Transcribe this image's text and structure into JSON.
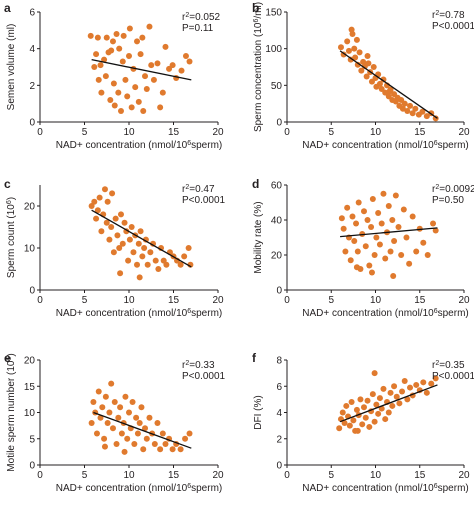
{
  "chart_data": [
    {
      "panel": "a",
      "type": "scatter",
      "xlabel": "NAD+ concentration (nmol/10^6sperm)",
      "ylabel": "Semen volume (ml)",
      "xlim": [
        0,
        20
      ],
      "ylim": [
        0,
        6
      ],
      "xticks": [
        "0",
        "5",
        "10",
        "15",
        "20"
      ],
      "yticks": [
        "0",
        "2",
        "4",
        "6"
      ],
      "stats": [
        "r²=0.052",
        "P=0.11"
      ],
      "fit": {
        "x": [
          5.8,
          17.0
        ],
        "y": [
          3.4,
          2.3
        ]
      },
      "points": [
        [
          5.7,
          4.7
        ],
        [
          6.1,
          3.0
        ],
        [
          6.3,
          3.7
        ],
        [
          6.5,
          4.6
        ],
        [
          6.6,
          2.3
        ],
        [
          6.8,
          3.1
        ],
        [
          6.9,
          1.6
        ],
        [
          7.2,
          3.4
        ],
        [
          7.4,
          2.5
        ],
        [
          7.5,
          4.6
        ],
        [
          7.7,
          3.8
        ],
        [
          7.9,
          1.2
        ],
        [
          8.0,
          3.9
        ],
        [
          8.2,
          4.4
        ],
        [
          8.3,
          2.1
        ],
        [
          8.4,
          0.9
        ],
        [
          8.6,
          4.8
        ],
        [
          8.8,
          1.6
        ],
        [
          8.9,
          4.0
        ],
        [
          9.1,
          0.6
        ],
        [
          9.3,
          3.3
        ],
        [
          9.4,
          4.7
        ],
        [
          9.6,
          2.3
        ],
        [
          9.8,
          1.4
        ],
        [
          10.0,
          3.6
        ],
        [
          10.1,
          5.1
        ],
        [
          10.3,
          0.8
        ],
        [
          10.5,
          2.9
        ],
        [
          10.7,
          1.9
        ],
        [
          10.9,
          4.4
        ],
        [
          11.1,
          1.1
        ],
        [
          11.3,
          3.7
        ],
        [
          11.5,
          4.6
        ],
        [
          11.6,
          0.6
        ],
        [
          11.8,
          2.5
        ],
        [
          12.0,
          1.8
        ],
        [
          12.3,
          5.2
        ],
        [
          12.5,
          3.1
        ],
        [
          12.8,
          2.3
        ],
        [
          13.2,
          3.2
        ],
        [
          13.5,
          0.8
        ],
        [
          13.8,
          1.6
        ],
        [
          14.1,
          4.1
        ],
        [
          14.5,
          2.9
        ],
        [
          14.9,
          3.1
        ],
        [
          15.3,
          2.4
        ],
        [
          15.9,
          2.8
        ],
        [
          16.4,
          3.6
        ],
        [
          16.8,
          3.3
        ]
      ]
    },
    {
      "panel": "b",
      "type": "scatter",
      "xlabel": "NAD+ concentration (nmol/10^6sperm)",
      "ylabel": "Sperm concentration (10^6/ml)",
      "xlim": [
        0,
        20
      ],
      "ylim": [
        0,
        150
      ],
      "xticks": [
        "0",
        "5",
        "10",
        "15",
        "20"
      ],
      "yticks": [
        "0",
        "50",
        "100",
        "150"
      ],
      "stats": [
        "r²=0.78",
        "P<0.0001"
      ],
      "fit": {
        "x": [
          6.0,
          17.0
        ],
        "y": [
          97,
          5
        ]
      },
      "points": [
        [
          6.1,
          102
        ],
        [
          6.4,
          92
        ],
        [
          6.8,
          110
        ],
        [
          7.0,
          97
        ],
        [
          7.2,
          85
        ],
        [
          7.4,
          120
        ],
        [
          7.6,
          100
        ],
        [
          7.7,
          88
        ],
        [
          7.9,
          112
        ],
        [
          8.0,
          78
        ],
        [
          8.2,
          95
        ],
        [
          8.4,
          70
        ],
        [
          8.6,
          82
        ],
        [
          8.8,
          76
        ],
        [
          9.0,
          62
        ],
        [
          9.2,
          80
        ],
        [
          9.4,
          68
        ],
        [
          9.6,
          55
        ],
        [
          9.8,
          75
        ],
        [
          10.0,
          60
        ],
        [
          10.1,
          48
        ],
        [
          10.3,
          65
        ],
        [
          10.5,
          52
        ],
        [
          10.7,
          45
        ],
        [
          10.9,
          58
        ],
        [
          11.1,
          40
        ],
        [
          11.3,
          50
        ],
        [
          11.5,
          35
        ],
        [
          11.7,
          44
        ],
        [
          11.9,
          30
        ],
        [
          12.1,
          38
        ],
        [
          12.3,
          28
        ],
        [
          12.5,
          33
        ],
        [
          12.7,
          22
        ],
        [
          12.9,
          30
        ],
        [
          13.1,
          18
        ],
        [
          13.3,
          25
        ],
        [
          13.6,
          15
        ],
        [
          13.9,
          22
        ],
        [
          14.2,
          12
        ],
        [
          14.5,
          18
        ],
        [
          14.9,
          10
        ],
        [
          15.3,
          14
        ],
        [
          15.8,
          8
        ],
        [
          16.3,
          12
        ],
        [
          16.8,
          5
        ],
        [
          7.3,
          126
        ],
        [
          9.1,
          90
        ],
        [
          11.6,
          42
        ]
      ]
    },
    {
      "panel": "c",
      "type": "scatter",
      "xlabel": "NAD+ concentration (nmol/10^6sperm)",
      "ylabel": "Sperm count (10^6)",
      "xlim": [
        0,
        20
      ],
      "ylim": [
        0,
        25
      ],
      "xticks": [
        "0",
        "5",
        "10",
        "15",
        "20"
      ],
      "yticks": [
        "0",
        "10",
        "20"
      ],
      "stats": [
        "r²=0.47",
        "P<0.0001"
      ],
      "fit": {
        "x": [
          5.8,
          17.0
        ],
        "y": [
          19,
          5.5
        ]
      },
      "points": [
        [
          5.8,
          20
        ],
        [
          6.1,
          21
        ],
        [
          6.3,
          17
        ],
        [
          6.5,
          19
        ],
        [
          6.7,
          22
        ],
        [
          6.9,
          14
        ],
        [
          7.1,
          18
        ],
        [
          7.3,
          24
        ],
        [
          7.5,
          16
        ],
        [
          7.6,
          21
        ],
        [
          7.8,
          12
        ],
        [
          8.0,
          15
        ],
        [
          8.1,
          23
        ],
        [
          8.3,
          9
        ],
        [
          8.5,
          17
        ],
        [
          8.7,
          13
        ],
        [
          8.9,
          10
        ],
        [
          9.1,
          18
        ],
        [
          9.3,
          11
        ],
        [
          9.5,
          16
        ],
        [
          9.7,
          14
        ],
        [
          9.9,
          7
        ],
        [
          10.1,
          12
        ],
        [
          10.3,
          15
        ],
        [
          10.5,
          9
        ],
        [
          10.7,
          13
        ],
        [
          10.9,
          6
        ],
        [
          11.1,
          11
        ],
        [
          11.3,
          14
        ],
        [
          11.5,
          8
        ],
        [
          11.7,
          10
        ],
        [
          11.9,
          12
        ],
        [
          12.1,
          6
        ],
        [
          12.4,
          9
        ],
        [
          12.7,
          11
        ],
        [
          13.0,
          7
        ],
        [
          13.3,
          5
        ],
        [
          13.6,
          10
        ],
        [
          13.9,
          7
        ],
        [
          14.2,
          6
        ],
        [
          14.6,
          9
        ],
        [
          15.0,
          8
        ],
        [
          15.4,
          7
        ],
        [
          15.8,
          6
        ],
        [
          16.2,
          8
        ],
        [
          16.7,
          10
        ],
        [
          16.9,
          6
        ],
        [
          9.0,
          4
        ],
        [
          11.2,
          3
        ]
      ]
    },
    {
      "panel": "d",
      "type": "scatter",
      "xlabel": "NAD+ concentration (nmol/10^6sperm)",
      "ylabel": "Mobility rate (%)",
      "xlim": [
        0,
        20
      ],
      "ylim": [
        0,
        60
      ],
      "xticks": [
        "0",
        "5",
        "10",
        "15",
        "20"
      ],
      "yticks": [
        "0",
        "20",
        "40",
        "60"
      ],
      "stats": [
        "r²=0.0092",
        "P=0.50"
      ],
      "fit": {
        "x": [
          6.0,
          17.0
        ],
        "y": [
          30.5,
          35.5
        ]
      },
      "points": [
        [
          6.2,
          41
        ],
        [
          6.4,
          35
        ],
        [
          6.6,
          22
        ],
        [
          6.8,
          47
        ],
        [
          7.0,
          30
        ],
        [
          7.2,
          17
        ],
        [
          7.4,
          42
        ],
        [
          7.6,
          28
        ],
        [
          7.8,
          38
        ],
        [
          8.0,
          22
        ],
        [
          8.1,
          50
        ],
        [
          8.3,
          12
        ],
        [
          8.5,
          32
        ],
        [
          8.7,
          45
        ],
        [
          8.9,
          25
        ],
        [
          9.1,
          40
        ],
        [
          9.3,
          14
        ],
        [
          9.5,
          36
        ],
        [
          9.7,
          52
        ],
        [
          9.9,
          20
        ],
        [
          10.1,
          30
        ],
        [
          10.3,
          44
        ],
        [
          10.5,
          26
        ],
        [
          10.7,
          38
        ],
        [
          10.9,
          55
        ],
        [
          11.1,
          18
        ],
        [
          11.3,
          33
        ],
        [
          11.5,
          48
        ],
        [
          11.7,
          22
        ],
        [
          11.9,
          40
        ],
        [
          12.1,
          28
        ],
        [
          12.3,
          54
        ],
        [
          12.6,
          36
        ],
        [
          12.9,
          20
        ],
        [
          13.2,
          46
        ],
        [
          13.5,
          30
        ],
        [
          13.8,
          15
        ],
        [
          14.2,
          42
        ],
        [
          14.6,
          22
        ],
        [
          15.0,
          35
        ],
        [
          15.4,
          27
        ],
        [
          15.9,
          20
        ],
        [
          16.5,
          38
        ],
        [
          16.8,
          34
        ],
        [
          7.9,
          13
        ],
        [
          9.6,
          10
        ],
        [
          12.0,
          8
        ]
      ]
    },
    {
      "panel": "e",
      "type": "scatter",
      "xlabel": "NAD+ concentration (nmol/10^6sperm)",
      "ylabel": "Motile sperm number (10^6)",
      "xlim": [
        0,
        20
      ],
      "ylim": [
        0,
        20
      ],
      "xticks": [
        "0",
        "5",
        "10",
        "15",
        "20"
      ],
      "yticks": [
        "0",
        "5",
        "10",
        "15",
        "20"
      ],
      "stats": [
        "r²=0.33",
        "P<0.0001"
      ],
      "fit": {
        "x": [
          6.0,
          17.0
        ],
        "y": [
          10,
          3.2
        ]
      },
      "points": [
        [
          5.8,
          8
        ],
        [
          6.0,
          12
        ],
        [
          6.2,
          10
        ],
        [
          6.4,
          6
        ],
        [
          6.6,
          14
        ],
        [
          6.8,
          9
        ],
        [
          7.0,
          11
        ],
        [
          7.2,
          5
        ],
        [
          7.4,
          13
        ],
        [
          7.6,
          8
        ],
        [
          7.8,
          10
        ],
        [
          8.0,
          15.5
        ],
        [
          8.2,
          7
        ],
        [
          8.4,
          12
        ],
        [
          8.6,
          4
        ],
        [
          8.8,
          9
        ],
        [
          9.0,
          11
        ],
        [
          9.2,
          6
        ],
        [
          9.4,
          8
        ],
        [
          9.6,
          13
        ],
        [
          9.8,
          5
        ],
        [
          10.0,
          10
        ],
        [
          10.2,
          7
        ],
        [
          10.4,
          12
        ],
        [
          10.6,
          4
        ],
        [
          10.8,
          9
        ],
        [
          11.0,
          6
        ],
        [
          11.2,
          8
        ],
        [
          11.4,
          11
        ],
        [
          11.6,
          3
        ],
        [
          11.8,
          7
        ],
        [
          12.0,
          5
        ],
        [
          12.3,
          9
        ],
        [
          12.6,
          6
        ],
        [
          12.9,
          4
        ],
        [
          13.2,
          8
        ],
        [
          13.5,
          3
        ],
        [
          13.8,
          6
        ],
        [
          14.1,
          4
        ],
        [
          14.5,
          5
        ],
        [
          14.9,
          3
        ],
        [
          15.3,
          4
        ],
        [
          15.8,
          3
        ],
        [
          16.3,
          5
        ],
        [
          16.8,
          6
        ],
        [
          7.3,
          3.5
        ],
        [
          9.5,
          2.5
        ]
      ]
    },
    {
      "panel": "f",
      "type": "scatter",
      "xlabel": "NAD+ concentration (nmol/10^6sperm)",
      "ylabel": "DFI (%)",
      "xlim": [
        0,
        20
      ],
      "ylim": [
        0,
        8
      ],
      "xticks": [
        "0",
        "5",
        "10",
        "15",
        "20"
      ],
      "yticks": [
        "0",
        "2",
        "4",
        "6",
        "8"
      ],
      "stats": [
        "r²=0.35",
        "P<0.0001"
      ],
      "fit": {
        "x": [
          6.0,
          17.0
        ],
        "y": [
          3.3,
          6.1
        ]
      },
      "points": [
        [
          5.9,
          2.8
        ],
        [
          6.1,
          3.5
        ],
        [
          6.3,
          4.0
        ],
        [
          6.5,
          3.2
        ],
        [
          6.7,
          4.5
        ],
        [
          6.9,
          3.7
        ],
        [
          7.1,
          3.0
        ],
        [
          7.3,
          4.8
        ],
        [
          7.5,
          3.4
        ],
        [
          7.7,
          2.6
        ],
        [
          7.9,
          4.2
        ],
        [
          8.1,
          3.8
        ],
        [
          8.3,
          5.0
        ],
        [
          8.5,
          3.1
        ],
        [
          8.7,
          4.4
        ],
        [
          8.9,
          3.6
        ],
        [
          9.1,
          4.9
        ],
        [
          9.3,
          2.9
        ],
        [
          9.5,
          4.1
        ],
        [
          9.7,
          5.4
        ],
        [
          9.9,
          3.3
        ],
        [
          10.1,
          4.6
        ],
        [
          10.3,
          3.9
        ],
        [
          10.5,
          5.1
        ],
        [
          10.7,
          4.3
        ],
        [
          10.9,
          5.8
        ],
        [
          11.1,
          3.5
        ],
        [
          11.3,
          4.8
        ],
        [
          11.5,
          4.0
        ],
        [
          11.7,
          5.5
        ],
        [
          11.9,
          4.5
        ],
        [
          12.1,
          6.0
        ],
        [
          12.4,
          5.2
        ],
        [
          12.7,
          4.7
        ],
        [
          13.0,
          5.6
        ],
        [
          13.3,
          6.4
        ],
        [
          13.6,
          5.0
        ],
        [
          13.9,
          5.9
        ],
        [
          14.2,
          5.3
        ],
        [
          14.6,
          6.1
        ],
        [
          15.0,
          5.7
        ],
        [
          15.4,
          6.3
        ],
        [
          15.8,
          5.5
        ],
        [
          16.3,
          6.2
        ],
        [
          16.8,
          6.6
        ],
        [
          9.9,
          7.0
        ],
        [
          8.0,
          2.6
        ]
      ]
    }
  ]
}
